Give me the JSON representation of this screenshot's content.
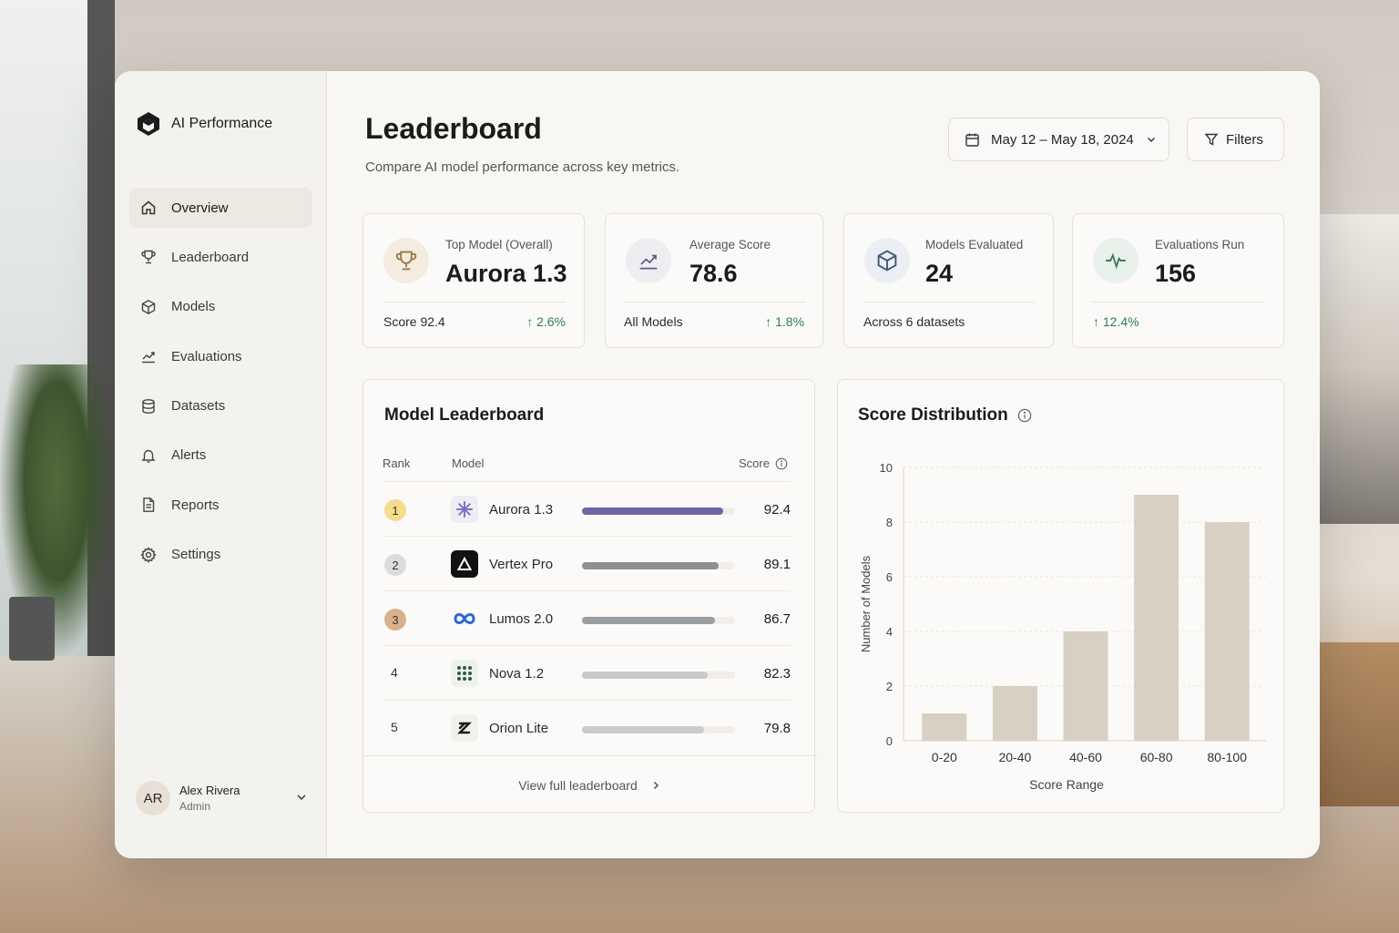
{
  "app": {
    "name": "AI Performance"
  },
  "sidebar": {
    "items": [
      {
        "label": "Overview",
        "icon": "home-icon",
        "active": true
      },
      {
        "label": "Leaderboard",
        "icon": "trophy-icon"
      },
      {
        "label": "Models",
        "icon": "cube-icon"
      },
      {
        "label": "Evaluations",
        "icon": "chart-line-icon"
      },
      {
        "label": "Datasets",
        "icon": "database-icon"
      },
      {
        "label": "Alerts",
        "icon": "bell-icon"
      },
      {
        "label": "Reports",
        "icon": "document-icon"
      },
      {
        "label": "Settings",
        "icon": "gear-icon"
      }
    ],
    "user": {
      "initials": "AR",
      "name": "Alex Rivera",
      "role": "Admin"
    }
  },
  "header": {
    "title": "Leaderboard",
    "subtitle": "Compare AI model performance across key metrics.",
    "date_range": "May 12 – May 18, 2024",
    "filters_label": "Filters"
  },
  "kpis": [
    {
      "label": "Top Model (Overall)",
      "value": "Aurora 1.3",
      "foot": "Score 92.4",
      "trend": "2.6%",
      "icon": "trophy-icon"
    },
    {
      "label": "Average Score",
      "value": "78.6",
      "foot": "All Models",
      "trend": "1.8%",
      "icon": "chart-line-icon"
    },
    {
      "label": "Models Evaluated",
      "value": "24",
      "foot": "Across 6 datasets",
      "trend": "",
      "icon": "cube-icon"
    },
    {
      "label": "Evaluations Run",
      "value": "156",
      "foot": "",
      "trend": "12.4%",
      "icon": "pulse-icon"
    }
  ],
  "leaderboard": {
    "title": "Model Leaderboard",
    "columns": {
      "rank": "Rank",
      "model": "Model",
      "score": "Score"
    },
    "rows": [
      {
        "rank": "1",
        "model": "Aurora 1.3",
        "score": "92.4",
        "fill": 0.924,
        "bar_color": "#6b67a3",
        "badge_color": "#f5dc8c"
      },
      {
        "rank": "2",
        "model": "Vertex Pro",
        "score": "89.1",
        "fill": 0.891,
        "bar_color": "#8d9095",
        "badge_color": "#dcdcdc"
      },
      {
        "rank": "3",
        "model": "Lumos 2.0",
        "score": "86.7",
        "fill": 0.867,
        "bar_color": "#9a9da1",
        "badge_color": "#d9b08c"
      },
      {
        "rank": "4",
        "model": "Nova 1.2",
        "score": "82.3",
        "fill": 0.823,
        "bar_color": "#c9c9c9",
        "badge_color": ""
      },
      {
        "rank": "5",
        "model": "Orion Lite",
        "score": "79.8",
        "fill": 0.798,
        "bar_color": "#cbcbcb",
        "badge_color": ""
      }
    ],
    "view_all": "View full leaderboard"
  },
  "chart_data": {
    "type": "bar",
    "title": "Score Distribution",
    "categories": [
      "0-20",
      "20-40",
      "40-60",
      "60-80",
      "80-100"
    ],
    "values": [
      1,
      2,
      4,
      9,
      8
    ],
    "xlabel": "Score Range",
    "ylabel": "Number of Models",
    "ylim": [
      0,
      10
    ],
    "yticks": [
      "0",
      "2",
      "4",
      "6",
      "8",
      "10"
    ],
    "grid": true,
    "bar_color": "#d9d0c4"
  }
}
